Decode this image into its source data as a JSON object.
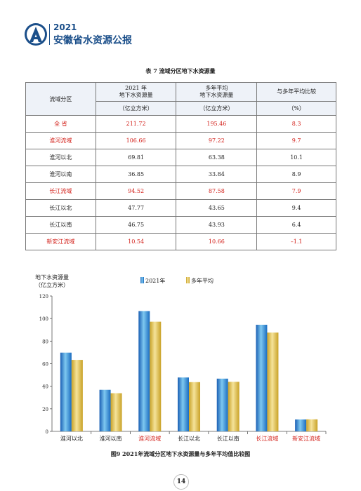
{
  "header": {
    "year": "2021",
    "title": "安徽省水资源公报"
  },
  "table": {
    "title": "表 7 流域分区地下水资源量",
    "columns": {
      "region": "流域分区",
      "y2021_line1": "2021 年",
      "y2021_line2": "地下水资源量",
      "avg_line1": "多年平均",
      "avg_line2": "地下水资源量",
      "compare": "与多年平均比较"
    },
    "units": {
      "y2021": "（亿立方米）",
      "avg": "（亿立方米）",
      "compare": "（%）"
    },
    "rows": [
      {
        "name": "全 省",
        "v2021": "211.72",
        "avg": "195.46",
        "pct": "8.3",
        "red": true
      },
      {
        "name": "淮河流域",
        "v2021": "106.66",
        "avg": "97.22",
        "pct": "9.7",
        "red": true
      },
      {
        "name": "淮河以北",
        "v2021": "69.81",
        "avg": "63.38",
        "pct": "10.1",
        "red": false
      },
      {
        "name": "淮河以南",
        "v2021": "36.85",
        "avg": "33.84",
        "pct": "8.9",
        "red": false
      },
      {
        "name": "长江流域",
        "v2021": "94.52",
        "avg": "87.58",
        "pct": "7.9",
        "red": true
      },
      {
        "name": "长江以北",
        "v2021": "47.77",
        "avg": "43.65",
        "pct": "9.4",
        "red": false
      },
      {
        "name": "长江以南",
        "v2021": "46.75",
        "avg": "43.93",
        "pct": "6.4",
        "red": false
      },
      {
        "name": "新安江流域",
        "v2021": "10.54",
        "avg": "10.66",
        "pct": "–1.1",
        "red": true
      }
    ]
  },
  "chart_data": {
    "type": "bar",
    "ylabel_line1": "地下水资源量",
    "ylabel_line2": "（亿立方米）",
    "ylim": [
      0,
      120
    ],
    "yticks": [
      0,
      20,
      40,
      60,
      80,
      100,
      120
    ],
    "categories": [
      "淮河以北",
      "淮河以南",
      "淮河流域",
      "长江以北",
      "长江以南",
      "长江流域",
      "新安江流域"
    ],
    "category_red": [
      false,
      false,
      true,
      false,
      false,
      true,
      true
    ],
    "series": [
      {
        "name": "2021年",
        "values": [
          69.81,
          36.85,
          106.66,
          47.77,
          46.75,
          94.52,
          10.54
        ],
        "color": "#2e86d6"
      },
      {
        "name": "多年平均",
        "values": [
          63.38,
          33.84,
          97.22,
          43.65,
          43.93,
          87.58,
          10.66
        ],
        "color": "#e0c24a"
      }
    ],
    "grid": false,
    "legend": "top"
  },
  "figure_caption": "图9 2021年流域分区地下水资源量与多年平均值比较图",
  "page_number": "14",
  "colors": {
    "brand": "#1b4f8a",
    "highlight": "#d3201a"
  }
}
